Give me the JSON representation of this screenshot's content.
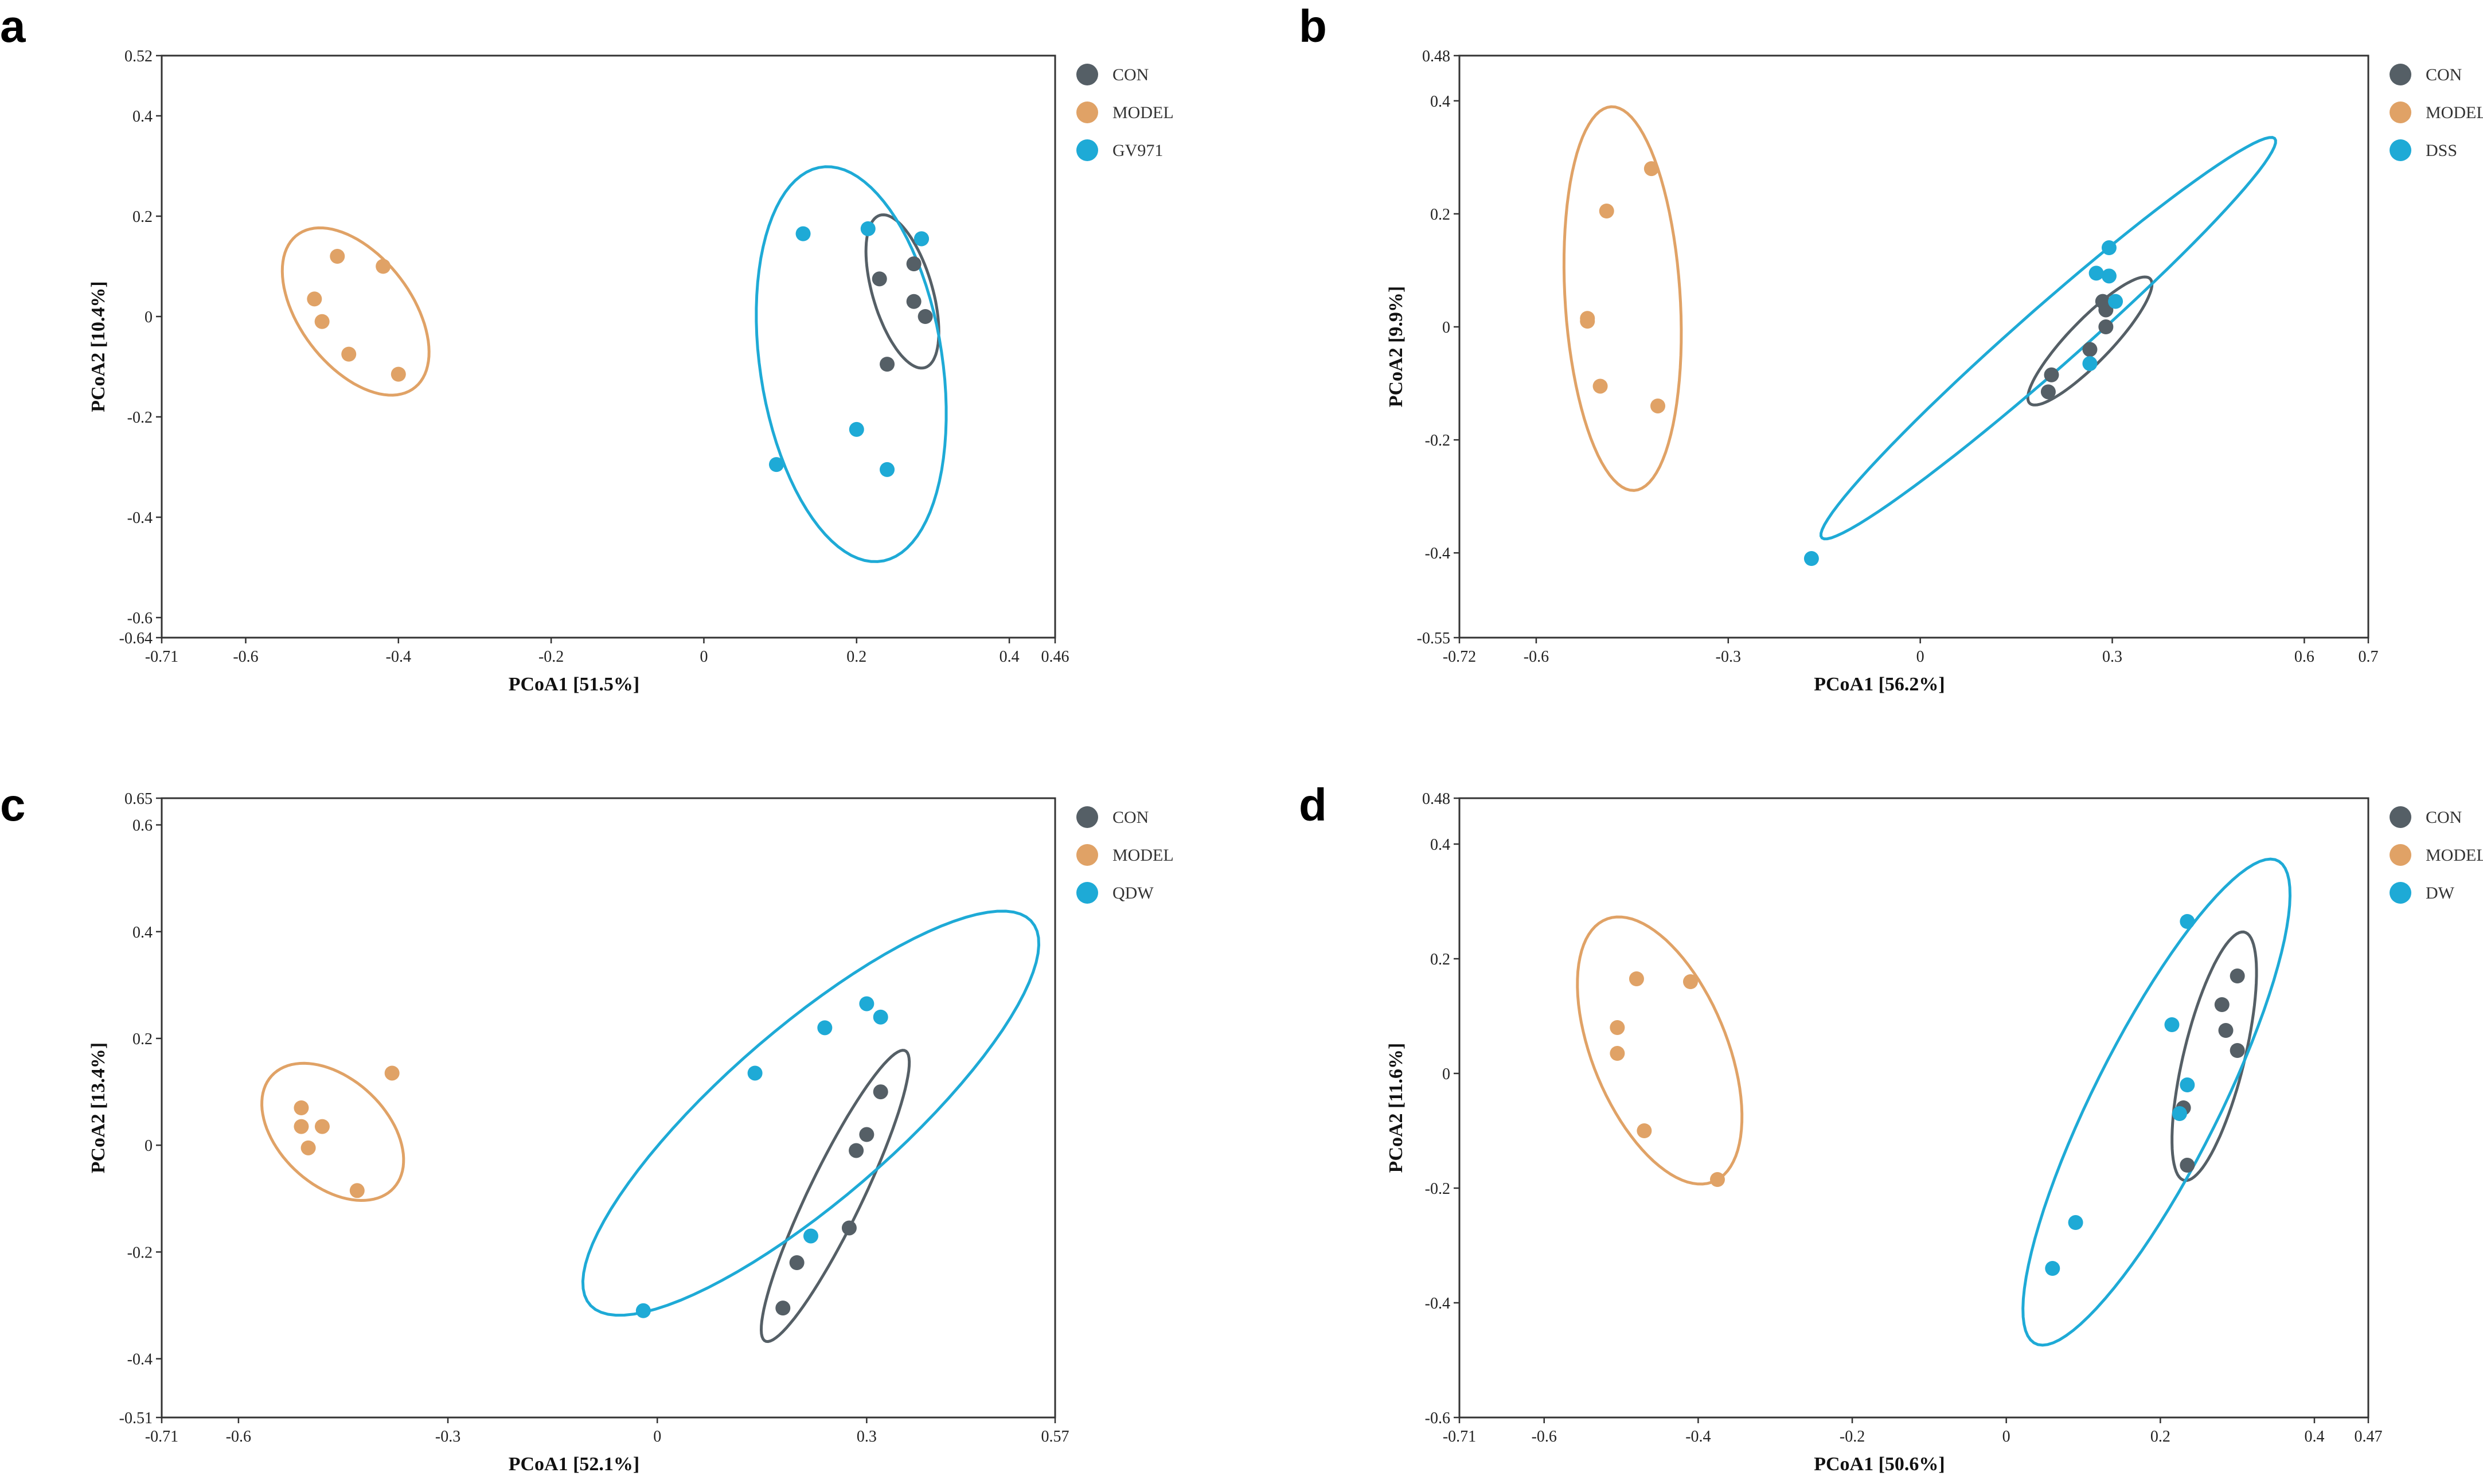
{
  "colors": {
    "CON": "#555f66",
    "MODEL": "#e0a266",
    "TREAT": "#1eaad6",
    "axis": "#333333"
  },
  "chart_data": [
    {
      "type": "scatter",
      "panel_label": "a",
      "xlabel": "PCoA1 [51.5%]",
      "ylabel": "PCoA2 [10.4%]",
      "xlim": [
        -0.71,
        0.46
      ],
      "ylim": [
        -0.64,
        0.52
      ],
      "xticks": [
        -0.71,
        -0.6,
        -0.4,
        -0.2,
        0,
        0.2,
        0.4,
        0.46
      ],
      "xtick_labels": [
        "-0.71",
        "-0.6",
        "-0.4",
        "-0.2",
        "0",
        "0.2",
        "0.4",
        "0.46"
      ],
      "yticks": [
        -0.64,
        -0.6,
        -0.4,
        -0.2,
        0,
        0.2,
        0.4,
        0.52
      ],
      "ytick_labels": [
        "-0.64",
        "-0.6",
        "-0.4",
        "-0.2",
        "0",
        "0.2",
        "0.4",
        "0.52"
      ],
      "series": [
        {
          "name": "CON",
          "color_key": "CON",
          "points": [
            [
              0.23,
              0.075
            ],
            [
              0.275,
              0.105
            ],
            [
              0.275,
              0.03
            ],
            [
              0.29,
              0.0
            ],
            [
              0.24,
              -0.095
            ],
            [
              0.285,
              0.155
            ]
          ],
          "ellipse": {
            "cx": 0.26,
            "cy": 0.05,
            "rx": 0.155,
            "ry": 0.04,
            "angle": 100
          }
        },
        {
          "name": "MODEL",
          "color_key": "MODEL",
          "points": [
            [
              -0.48,
              0.12
            ],
            [
              -0.42,
              0.1
            ],
            [
              -0.51,
              0.035
            ],
            [
              -0.5,
              -0.01
            ],
            [
              -0.465,
              -0.075
            ],
            [
              -0.4,
              -0.115
            ]
          ],
          "ellipse": {
            "cx": -0.456,
            "cy": 0.01,
            "rx": 0.175,
            "ry": 0.08,
            "angle": 110
          }
        },
        {
          "name": "GV971",
          "color_key": "TREAT",
          "points": [
            [
              0.13,
              0.165
            ],
            [
              0.215,
              0.175
            ],
            [
              0.285,
              0.155
            ],
            [
              0.2,
              -0.225
            ],
            [
              0.095,
              -0.295
            ],
            [
              0.24,
              -0.305
            ]
          ],
          "ellipse": {
            "cx": 0.193,
            "cy": -0.095,
            "rx": 0.395,
            "ry": 0.12,
            "angle": 95
          }
        }
      ]
    },
    {
      "type": "scatter",
      "panel_label": "b",
      "xlabel": "PCoA1 [56.2%]",
      "ylabel": "PCoA2 [9.9%]",
      "xlim": [
        -0.72,
        0.7
      ],
      "ylim": [
        -0.55,
        0.48
      ],
      "xticks": [
        -0.72,
        -0.6,
        -0.3,
        0,
        0.3,
        0.6,
        0.7
      ],
      "xtick_labels": [
        "-0.72",
        "-0.6",
        "-0.3",
        "0",
        "0.3",
        "0.6",
        "0.7"
      ],
      "yticks": [
        -0.55,
        -0.4,
        -0.2,
        0,
        0.2,
        0.4,
        0.48
      ],
      "ytick_labels": [
        "-0.55",
        "-0.4",
        "-0.2",
        "0",
        "0.2",
        "0.4",
        "0.48"
      ],
      "series": [
        {
          "name": "CON",
          "color_key": "CON",
          "points": [
            [
              0.285,
              0.045
            ],
            [
              0.29,
              0.03
            ],
            [
              0.29,
              0.0
            ],
            [
              0.265,
              -0.04
            ],
            [
              0.205,
              -0.085
            ],
            [
              0.2,
              -0.115
            ]
          ],
          "ellipse": {
            "cx": 0.265,
            "cy": -0.025,
            "rx": 0.145,
            "ry": 0.035,
            "angle": 50
          }
        },
        {
          "name": "MODEL",
          "color_key": "MODEL",
          "points": [
            [
              -0.42,
              0.28
            ],
            [
              -0.49,
              0.205
            ],
            [
              -0.52,
              0.015
            ],
            [
              -0.52,
              0.01
            ],
            [
              -0.5,
              -0.105
            ],
            [
              -0.41,
              -0.14
            ]
          ],
          "ellipse": {
            "cx": -0.465,
            "cy": 0.05,
            "rx": 0.34,
            "ry": 0.09,
            "angle": 93
          }
        },
        {
          "name": "DSS",
          "color_key": "TREAT",
          "points": [
            [
              0.295,
              0.14
            ],
            [
              0.275,
              0.095
            ],
            [
              0.295,
              0.09
            ],
            [
              0.305,
              0.045
            ],
            [
              0.265,
              -0.065
            ],
            [
              -0.17,
              -0.41
            ]
          ],
          "ellipse": {
            "cx": 0.2,
            "cy": -0.02,
            "rx": 0.5,
            "ry": 0.05,
            "angle": 45
          }
        }
      ]
    },
    {
      "type": "scatter",
      "panel_label": "c",
      "xlabel": "PCoA1 [52.1%]",
      "ylabel": "PCoA2 [13.4%]",
      "xlim": [
        -0.71,
        0.57
      ],
      "ylim": [
        -0.51,
        0.65
      ],
      "xticks": [
        -0.71,
        -0.6,
        -0.3,
        0,
        0.3,
        0.57
      ],
      "xtick_labels": [
        "-0.71",
        "-0.6",
        "-0.3",
        "0",
        "0.3",
        "0.57"
      ],
      "yticks": [
        -0.51,
        -0.4,
        -0.2,
        0,
        0.2,
        0.4,
        0.6,
        0.65
      ],
      "ytick_labels": [
        "-0.51",
        "-0.4",
        "-0.2",
        "0",
        "0.2",
        "0.4",
        "0.6",
        "0.65"
      ],
      "series": [
        {
          "name": "CON",
          "color_key": "CON",
          "points": [
            [
              0.32,
              0.1
            ],
            [
              0.3,
              0.02
            ],
            [
              0.285,
              -0.01
            ],
            [
              0.275,
              -0.155
            ],
            [
              0.2,
              -0.22
            ],
            [
              0.18,
              -0.305
            ]
          ],
          "ellipse": {
            "cx": 0.255,
            "cy": -0.095,
            "rx": 0.29,
            "ry": 0.04,
            "angle": 70
          }
        },
        {
          "name": "MODEL",
          "color_key": "MODEL",
          "points": [
            [
              -0.38,
              0.135
            ],
            [
              -0.51,
              0.07
            ],
            [
              -0.51,
              0.035
            ],
            [
              -0.48,
              0.035
            ],
            [
              -0.5,
              -0.005
            ],
            [
              -0.43,
              -0.085
            ]
          ],
          "ellipse": {
            "cx": -0.465,
            "cy": 0.025,
            "rx": 0.14,
            "ry": 0.085,
            "angle": 120
          }
        },
        {
          "name": "QDW",
          "color_key": "TREAT",
          "points": [
            [
              0.3,
              0.265
            ],
            [
              0.32,
              0.24
            ],
            [
              0.24,
              0.22
            ],
            [
              0.14,
              0.135
            ],
            [
              0.22,
              -0.17
            ],
            [
              -0.02,
              -0.31
            ]
          ],
          "ellipse": {
            "cx": 0.22,
            "cy": 0.06,
            "rx": 0.48,
            "ry": 0.14,
            "angle": 50
          }
        }
      ]
    },
    {
      "type": "scatter",
      "panel_label": "d",
      "xlabel": "PCoA1 [50.6%]",
      "ylabel": "PCoA2 [11.6%]",
      "xlim": [
        -0.71,
        0.47
      ],
      "ylim": [
        -0.6,
        0.48
      ],
      "xticks": [
        -0.71,
        -0.6,
        -0.4,
        -0.2,
        0,
        0.2,
        0.4,
        0.47
      ],
      "xtick_labels": [
        "-0.71",
        "-0.6",
        "-0.4",
        "-0.2",
        "0",
        "0.2",
        "0.4",
        "0.47"
      ],
      "yticks": [
        -0.6,
        -0.4,
        -0.2,
        0,
        0.2,
        0.4,
        0.48
      ],
      "ytick_labels": [
        "-0.6",
        "-0.4",
        "-0.2",
        "0",
        "0.2",
        "0.4",
        "0.48"
      ],
      "series": [
        {
          "name": "CON",
          "color_key": "CON",
          "points": [
            [
              0.3,
              0.17
            ],
            [
              0.28,
              0.12
            ],
            [
              0.285,
              0.075
            ],
            [
              0.3,
              0.04
            ],
            [
              0.23,
              -0.06
            ],
            [
              0.235,
              -0.16
            ]
          ],
          "ellipse": {
            "cx": 0.27,
            "cy": 0.03,
            "rx": 0.22,
            "ry": 0.04,
            "angle": 80
          }
        },
        {
          "name": "MODEL",
          "color_key": "MODEL",
          "points": [
            [
              -0.48,
              0.165
            ],
            [
              -0.41,
              0.16
            ],
            [
              -0.505,
              0.08
            ],
            [
              -0.505,
              0.035
            ],
            [
              -0.47,
              -0.1
            ],
            [
              -0.375,
              -0.185
            ]
          ],
          "ellipse": {
            "cx": -0.45,
            "cy": 0.04,
            "rx": 0.24,
            "ry": 0.09,
            "angle": 105
          }
        },
        {
          "name": "DW",
          "color_key": "TREAT",
          "points": [
            [
              0.235,
              0.265
            ],
            [
              0.215,
              0.085
            ],
            [
              0.235,
              -0.02
            ],
            [
              0.225,
              -0.07
            ],
            [
              0.09,
              -0.26
            ],
            [
              0.06,
              -0.34
            ]
          ],
          "ellipse": {
            "cx": 0.195,
            "cy": -0.05,
            "rx": 0.45,
            "ry": 0.085,
            "angle": 70
          }
        }
      ]
    }
  ]
}
